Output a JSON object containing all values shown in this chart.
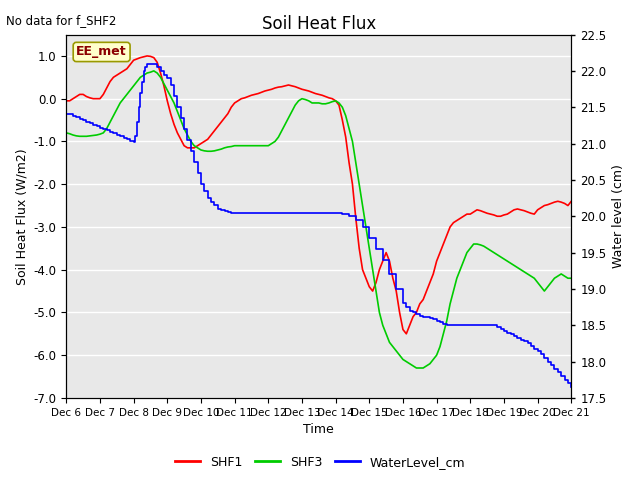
{
  "title": "Soil Heat Flux",
  "ylabel_left": "Soil Heat Flux (W/m2)",
  "ylabel_right": "Water level (cm)",
  "xlabel": "Time",
  "annotation_text": "No data for f_SHF2",
  "box_label": "EE_met",
  "ylim_left": [
    -7.0,
    1.5
  ],
  "ylim_right": [
    17.5,
    22.5
  ],
  "yticks_left": [
    1.0,
    0.0,
    -1.0,
    -2.0,
    -3.0,
    -4.0,
    -5.0,
    -6.0,
    -7.0
  ],
  "yticks_right": [
    22.5,
    22.0,
    21.5,
    21.0,
    20.5,
    20.0,
    19.5,
    19.0,
    18.5,
    18.0,
    17.5
  ],
  "background_color": "#e8e8e8",
  "grid_color": "#ffffff",
  "shf1_color": "#ff0000",
  "shf3_color": "#00cc00",
  "water_color": "#0000ff",
  "shf1_x": [
    6.0,
    6.1,
    6.2,
    6.3,
    6.4,
    6.5,
    6.6,
    6.7,
    6.8,
    6.9,
    7.0,
    7.1,
    7.2,
    7.3,
    7.4,
    7.5,
    7.6,
    7.7,
    7.8,
    7.9,
    8.0,
    8.1,
    8.2,
    8.3,
    8.4,
    8.5,
    8.6,
    8.7,
    8.8,
    8.9,
    9.0,
    9.1,
    9.2,
    9.3,
    9.4,
    9.5,
    9.6,
    9.7,
    9.8,
    9.9,
    10.0,
    10.1,
    10.2,
    10.3,
    10.4,
    10.5,
    10.6,
    10.7,
    10.8,
    10.9,
    11.0,
    11.1,
    11.2,
    11.3,
    11.4,
    11.5,
    11.6,
    11.7,
    11.8,
    11.9,
    12.0,
    12.1,
    12.2,
    12.3,
    12.4,
    12.5,
    12.6,
    12.7,
    12.8,
    12.9,
    13.0,
    13.1,
    13.2,
    13.3,
    13.4,
    13.5,
    13.6,
    13.7,
    13.8,
    13.9,
    14.0,
    14.1,
    14.2,
    14.3,
    14.4,
    14.5,
    14.6,
    14.7,
    14.8,
    14.9,
    15.0,
    15.1,
    15.2,
    15.3,
    15.4,
    15.5,
    15.6,
    15.7,
    15.8,
    15.9,
    16.0,
    16.1,
    16.2,
    16.3,
    16.4,
    16.5,
    16.6,
    16.7,
    16.8,
    16.9,
    17.0,
    17.1,
    17.2,
    17.3,
    17.4,
    17.5,
    17.6,
    17.7,
    17.8,
    17.9,
    18.0,
    18.1,
    18.2,
    18.3,
    18.4,
    18.5,
    18.6,
    18.7,
    18.8,
    18.9,
    19.0,
    19.1,
    19.2,
    19.3,
    19.4,
    19.5,
    19.6,
    19.7,
    19.8,
    19.9,
    20.0,
    20.1,
    20.2,
    20.3,
    20.4,
    20.5,
    20.6,
    20.7,
    20.8,
    20.9,
    21.0
  ],
  "shf1_y": [
    -0.05,
    -0.05,
    0.0,
    0.05,
    0.1,
    0.1,
    0.05,
    0.02,
    0.0,
    0.0,
    0.0,
    0.1,
    0.25,
    0.4,
    0.5,
    0.55,
    0.6,
    0.65,
    0.7,
    0.8,
    0.9,
    0.93,
    0.96,
    0.98,
    1.0,
    0.99,
    0.96,
    0.85,
    0.6,
    0.3,
    -0.05,
    -0.35,
    -0.6,
    -0.8,
    -0.95,
    -1.1,
    -1.15,
    -1.15,
    -1.15,
    -1.1,
    -1.05,
    -1.0,
    -0.95,
    -0.85,
    -0.75,
    -0.65,
    -0.55,
    -0.45,
    -0.35,
    -0.2,
    -0.1,
    -0.05,
    0.0,
    0.02,
    0.05,
    0.08,
    0.1,
    0.12,
    0.15,
    0.18,
    0.2,
    0.22,
    0.25,
    0.27,
    0.28,
    0.3,
    0.32,
    0.3,
    0.28,
    0.25,
    0.22,
    0.2,
    0.18,
    0.15,
    0.12,
    0.1,
    0.08,
    0.05,
    0.02,
    0.0,
    -0.05,
    -0.15,
    -0.5,
    -0.9,
    -1.5,
    -2.0,
    -2.8,
    -3.5,
    -4.0,
    -4.2,
    -4.4,
    -4.5,
    -4.3,
    -4.0,
    -3.8,
    -3.6,
    -3.8,
    -4.2,
    -4.5,
    -5.0,
    -5.4,
    -5.5,
    -5.3,
    -5.1,
    -5.0,
    -4.8,
    -4.7,
    -4.5,
    -4.3,
    -4.1,
    -3.8,
    -3.6,
    -3.4,
    -3.2,
    -3.0,
    -2.9,
    -2.85,
    -2.8,
    -2.75,
    -2.7,
    -2.7,
    -2.65,
    -2.6,
    -2.62,
    -2.65,
    -2.68,
    -2.7,
    -2.72,
    -2.75,
    -2.75,
    -2.72,
    -2.7,
    -2.65,
    -2.6,
    -2.58,
    -2.6,
    -2.62,
    -2.65,
    -2.68,
    -2.7,
    -2.6,
    -2.55,
    -2.5,
    -2.48,
    -2.45,
    -2.42,
    -2.4,
    -2.42,
    -2.45,
    -2.5,
    -2.4
  ],
  "shf3_x": [
    6.0,
    6.1,
    6.2,
    6.3,
    6.4,
    6.5,
    6.6,
    6.7,
    6.8,
    6.9,
    7.0,
    7.1,
    7.2,
    7.3,
    7.4,
    7.5,
    7.6,
    7.7,
    7.8,
    7.9,
    8.0,
    8.1,
    8.2,
    8.3,
    8.4,
    8.5,
    8.6,
    8.7,
    8.8,
    8.9,
    9.0,
    9.1,
    9.2,
    9.3,
    9.4,
    9.5,
    9.6,
    9.7,
    9.8,
    9.9,
    10.0,
    10.1,
    10.2,
    10.3,
    10.4,
    10.5,
    10.6,
    10.7,
    10.8,
    10.9,
    11.0,
    11.1,
    11.2,
    11.3,
    11.4,
    11.5,
    11.6,
    11.7,
    11.8,
    11.9,
    12.0,
    12.1,
    12.2,
    12.3,
    12.4,
    12.5,
    12.6,
    12.7,
    12.8,
    12.9,
    13.0,
    13.1,
    13.2,
    13.3,
    13.4,
    13.5,
    13.6,
    13.7,
    13.8,
    13.9,
    14.0,
    14.1,
    14.2,
    14.3,
    14.4,
    14.5,
    14.6,
    14.7,
    14.8,
    14.9,
    15.0,
    15.1,
    15.2,
    15.3,
    15.4,
    15.5,
    15.6,
    15.7,
    15.8,
    15.9,
    16.0,
    16.1,
    16.2,
    16.3,
    16.4,
    16.5,
    16.6,
    16.7,
    16.8,
    16.9,
    17.0,
    17.1,
    17.2,
    17.3,
    17.4,
    17.5,
    17.6,
    17.7,
    17.8,
    17.9,
    18.0,
    18.1,
    18.2,
    18.3,
    18.4,
    18.5,
    18.6,
    18.7,
    18.8,
    18.9,
    19.0,
    19.1,
    19.2,
    19.3,
    19.4,
    19.5,
    19.6,
    19.7,
    19.8,
    19.9,
    20.0,
    20.1,
    20.2,
    20.3,
    20.4,
    20.5,
    20.6,
    20.7,
    20.8,
    20.9,
    21.0
  ],
  "shf3_y": [
    -0.8,
    -0.82,
    -0.85,
    -0.87,
    -0.88,
    -0.88,
    -0.88,
    -0.87,
    -0.86,
    -0.85,
    -0.83,
    -0.8,
    -0.7,
    -0.55,
    -0.4,
    -0.25,
    -0.1,
    0.0,
    0.1,
    0.2,
    0.3,
    0.4,
    0.5,
    0.55,
    0.6,
    0.62,
    0.65,
    0.6,
    0.5,
    0.35,
    0.2,
    0.05,
    -0.1,
    -0.3,
    -0.5,
    -0.7,
    -0.85,
    -1.0,
    -1.1,
    -1.15,
    -1.2,
    -1.22,
    -1.23,
    -1.23,
    -1.22,
    -1.2,
    -1.18,
    -1.15,
    -1.13,
    -1.12,
    -1.1,
    -1.1,
    -1.1,
    -1.1,
    -1.1,
    -1.1,
    -1.1,
    -1.1,
    -1.1,
    -1.1,
    -1.1,
    -1.05,
    -1.0,
    -0.9,
    -0.75,
    -0.6,
    -0.45,
    -0.3,
    -0.15,
    -0.05,
    0.0,
    -0.02,
    -0.05,
    -0.1,
    -0.1,
    -0.1,
    -0.12,
    -0.12,
    -0.1,
    -0.07,
    -0.05,
    -0.1,
    -0.2,
    -0.4,
    -0.7,
    -1.0,
    -1.5,
    -2.0,
    -2.5,
    -3.0,
    -3.5,
    -4.0,
    -4.5,
    -5.0,
    -5.3,
    -5.5,
    -5.7,
    -5.8,
    -5.9,
    -6.0,
    -6.1,
    -6.15,
    -6.2,
    -6.25,
    -6.3,
    -6.3,
    -6.3,
    -6.25,
    -6.2,
    -6.1,
    -6.0,
    -5.8,
    -5.5,
    -5.2,
    -4.8,
    -4.5,
    -4.2,
    -4.0,
    -3.8,
    -3.6,
    -3.5,
    -3.4,
    -3.4,
    -3.42,
    -3.45,
    -3.5,
    -3.55,
    -3.6,
    -3.65,
    -3.7,
    -3.75,
    -3.8,
    -3.85,
    -3.9,
    -3.95,
    -4.0,
    -4.05,
    -4.1,
    -4.15,
    -4.2,
    -4.3,
    -4.4,
    -4.5,
    -4.4,
    -4.3,
    -4.2,
    -4.15,
    -4.1,
    -4.15,
    -4.2,
    -4.2
  ],
  "water_x": [
    6.0,
    6.1,
    6.2,
    6.3,
    6.4,
    6.5,
    6.6,
    6.7,
    6.8,
    6.9,
    7.0,
    7.1,
    7.2,
    7.3,
    7.4,
    7.5,
    7.6,
    7.7,
    7.8,
    7.9,
    8.0,
    8.05,
    8.1,
    8.15,
    8.2,
    8.25,
    8.3,
    8.35,
    8.4,
    8.5,
    8.6,
    8.7,
    8.8,
    8.9,
    9.0,
    9.1,
    9.2,
    9.3,
    9.4,
    9.5,
    9.6,
    9.7,
    9.8,
    9.9,
    10.0,
    10.1,
    10.2,
    10.3,
    10.4,
    10.5,
    10.6,
    10.7,
    10.8,
    10.9,
    11.0,
    11.2,
    11.4,
    11.6,
    11.8,
    12.0,
    12.2,
    12.4,
    12.6,
    12.8,
    13.0,
    13.5,
    14.0,
    14.2,
    14.4,
    14.6,
    14.8,
    15.0,
    15.2,
    15.4,
    15.6,
    15.8,
    16.0,
    16.1,
    16.2,
    16.3,
    16.4,
    16.5,
    16.6,
    16.7,
    16.8,
    16.9,
    17.0,
    17.1,
    17.2,
    17.3,
    17.4,
    17.5,
    17.6,
    17.7,
    17.8,
    17.9,
    18.0,
    18.1,
    18.2,
    18.3,
    18.4,
    18.5,
    18.6,
    18.7,
    18.8,
    18.9,
    19.0,
    19.1,
    19.2,
    19.3,
    19.4,
    19.5,
    19.6,
    19.7,
    19.8,
    19.9,
    20.0,
    20.1,
    20.2,
    20.3,
    20.4,
    20.5,
    20.6,
    20.7,
    20.8,
    20.9,
    21.0
  ],
  "water_y_cm": [
    21.4,
    21.4,
    21.38,
    21.36,
    21.34,
    21.32,
    21.3,
    21.28,
    21.26,
    21.24,
    21.22,
    21.2,
    21.18,
    21.16,
    21.14,
    21.12,
    21.1,
    21.08,
    21.06,
    21.04,
    21.02,
    21.1,
    21.3,
    21.5,
    21.7,
    21.85,
    22.0,
    22.05,
    22.1,
    22.1,
    22.1,
    22.05,
    22.0,
    21.95,
    21.9,
    21.8,
    21.65,
    21.5,
    21.35,
    21.2,
    21.05,
    20.9,
    20.75,
    20.6,
    20.45,
    20.35,
    20.25,
    20.2,
    20.15,
    20.1,
    20.08,
    20.07,
    20.06,
    20.05,
    20.05,
    20.05,
    20.05,
    20.05,
    20.05,
    20.05,
    20.05,
    20.05,
    20.05,
    20.05,
    20.05,
    20.05,
    20.05,
    20.03,
    20.0,
    19.95,
    19.85,
    19.7,
    19.55,
    19.4,
    19.2,
    19.0,
    18.8,
    18.75,
    18.7,
    18.68,
    18.65,
    18.63,
    18.62,
    18.61,
    18.6,
    18.58,
    18.56,
    18.54,
    18.52,
    18.5,
    18.5,
    18.5,
    18.5,
    18.5,
    18.5,
    18.5,
    18.5,
    18.5,
    18.5,
    18.5,
    18.5,
    18.5,
    18.5,
    18.5,
    18.48,
    18.45,
    18.42,
    18.4,
    18.38,
    18.35,
    18.32,
    18.3,
    18.28,
    18.25,
    18.22,
    18.18,
    18.15,
    18.1,
    18.05,
    18.0,
    17.95,
    17.9,
    17.85,
    17.8,
    17.75,
    17.7,
    17.65
  ],
  "xticks": [
    6,
    7,
    8,
    9,
    10,
    11,
    12,
    13,
    14,
    15,
    16,
    17,
    18,
    19,
    20,
    21
  ],
  "xticklabels": [
    "Dec 6",
    "Dec 7",
    "Dec 8",
    "Dec 9",
    "Dec 10",
    "Dec 11",
    "Dec 12",
    "Dec 13",
    "Dec 14",
    "Dec 15",
    "Dec 16",
    "Dec 17",
    "Dec 18",
    "Dec 19",
    "Dec 20",
    "Dec 21"
  ],
  "xlim": [
    6,
    21
  ]
}
